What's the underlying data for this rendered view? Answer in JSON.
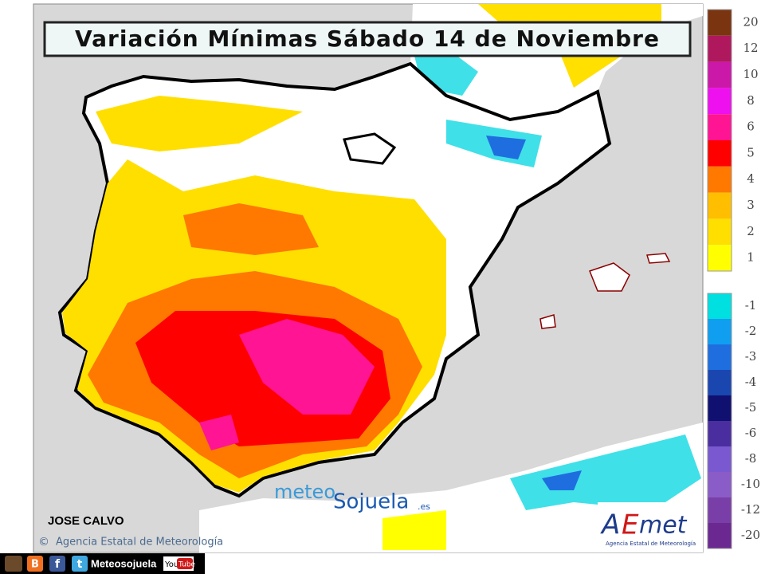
{
  "header": {
    "title": "Variación Mínimas Sábado 14 de Noviembre"
  },
  "legend": {
    "positive": [
      {
        "label": "20",
        "color": "#7a3410"
      },
      {
        "label": "12",
        "color": "#b0185e"
      },
      {
        "label": "10",
        "color": "#cc18a8"
      },
      {
        "label": "8",
        "color": "#ee10ee"
      },
      {
        "label": "6",
        "color": "#ff1493"
      },
      {
        "label": "5",
        "color": "#ff0000"
      },
      {
        "label": "4",
        "color": "#ff7800"
      },
      {
        "label": "3",
        "color": "#ffbe00"
      },
      {
        "label": "2",
        "color": "#ffdf00"
      },
      {
        "label": "1",
        "color": "#ffff00"
      }
    ],
    "negative": [
      {
        "label": "-1",
        "color": "#00e0e0"
      },
      {
        "label": "-2",
        "color": "#109ef0"
      },
      {
        "label": "-3",
        "color": "#1f6ee0"
      },
      {
        "label": "-4",
        "color": "#1a46b0"
      },
      {
        "label": "-5",
        "color": "#101070"
      },
      {
        "label": "-6",
        "color": "#4a2ea0"
      },
      {
        "label": "-8",
        "color": "#7a58d0"
      },
      {
        "label": "-10",
        "color": "#8a5cc8"
      },
      {
        "label": "-12",
        "color": "#7a3ea8"
      },
      {
        "label": "-20",
        "color": "#6a2890"
      }
    ]
  },
  "credits": {
    "author": "JOSE CALVO",
    "copyright": "©",
    "agency": "Agencia Estatal de Meteorología"
  },
  "logos": {
    "meteo": "meteo",
    "sojuela": "Sojuela",
    "domain": ".es",
    "aemet_a": "A",
    "aemet_e": "E",
    "aemet_rest": "met",
    "aemet_caption": "Agencia Estatal de Meteorología"
  },
  "footer": {
    "blogger": "B",
    "facebook": "f",
    "twitter": "t",
    "channel": "Meteosojuela",
    "you": "You",
    "tube": "Tube"
  }
}
